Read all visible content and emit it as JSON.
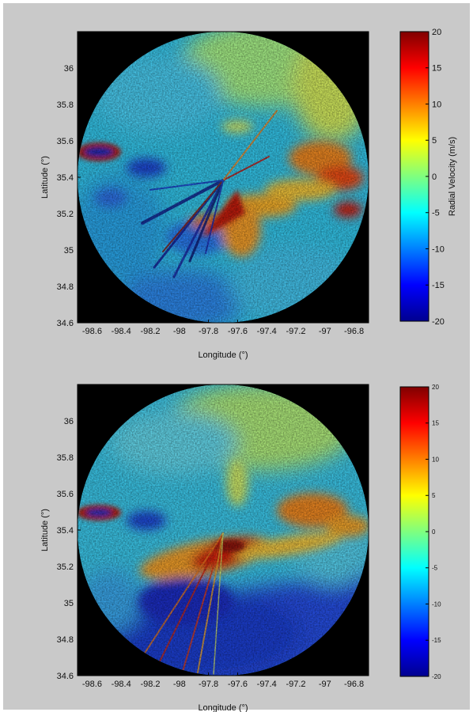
{
  "figure": {
    "background": "#c9c9c9",
    "plot_background": "#000000"
  },
  "chart_data": [
    {
      "type": "heatmap",
      "plot": "radial-velocity-map-top",
      "title": "",
      "xlabel": "Longitude (°)",
      "ylabel": "Latitude (°)",
      "xlim": [
        -98.7,
        -96.7
      ],
      "ylim": [
        34.6,
        36.2
      ],
      "xticks": [
        -98.6,
        -98.4,
        -98.2,
        -98.0,
        -97.8,
        -97.6,
        -97.4,
        -97.2,
        -97.0,
        -96.8
      ],
      "xtick_labels": [
        "-98.6",
        "-98.4",
        "-98.2",
        "-98",
        "-97.8",
        "-97.6",
        "-97.4",
        "-97.2",
        "-97",
        "-96.8"
      ],
      "yticks": [
        34.6,
        34.8,
        35.0,
        35.2,
        35.4,
        35.6,
        35.8,
        36.0
      ],
      "ytick_labels": [
        "34.6",
        "34.8",
        "35",
        "35.2",
        "35.4",
        "35.6",
        "35.8",
        "36"
      ],
      "radar_center": {
        "lon": -97.7,
        "lat": 35.4
      },
      "colorbar": {
        "label": "Radial Velocity (m/s)",
        "range": [
          -20,
          20
        ],
        "ticks": [
          20,
          15,
          10,
          5,
          0,
          -5,
          -10,
          -15,
          -20
        ],
        "tick_labels": [
          "20",
          "15",
          "10",
          "5",
          "0",
          "-5",
          "-10",
          "-15",
          "-20"
        ],
        "colormap": "jet"
      },
      "grid": false,
      "legend": "none"
    },
    {
      "type": "heatmap",
      "plot": "radial-velocity-map-bottom",
      "title": "",
      "xlabel": "Longitude (°)",
      "ylabel": "Latitude (°)",
      "xlim": [
        -98.7,
        -96.7
      ],
      "ylim": [
        34.6,
        36.2
      ],
      "xticks": [
        -98.6,
        -98.4,
        -98.2,
        -98.0,
        -97.8,
        -97.6,
        -97.4,
        -97.2,
        -97.0,
        -96.8
      ],
      "xtick_labels": [
        "-98.6",
        "-98.4",
        "-98.2",
        "-98",
        "-97.8",
        "-97.6",
        "-97.4",
        "-97.2",
        "-97",
        "-96.8"
      ],
      "yticks": [
        34.6,
        34.8,
        35.0,
        35.2,
        35.4,
        35.6,
        35.8,
        36.0
      ],
      "ytick_labels": [
        "34.6",
        "34.8",
        "35",
        "35.2",
        "35.4",
        "35.6",
        "35.8",
        "36"
      ],
      "radar_center": {
        "lon": -97.7,
        "lat": 35.4
      },
      "colorbar": {
        "label": "",
        "range": [
          -20,
          20
        ],
        "ticks": [
          20,
          15,
          10,
          5,
          0,
          -5,
          -10,
          -15,
          -20
        ],
        "tick_labels": [
          "20",
          "15",
          "10",
          "5",
          "0",
          "-5",
          "-10",
          "-15",
          "-20"
        ],
        "colormap": "jet"
      },
      "grid": false,
      "legend": "none"
    }
  ]
}
